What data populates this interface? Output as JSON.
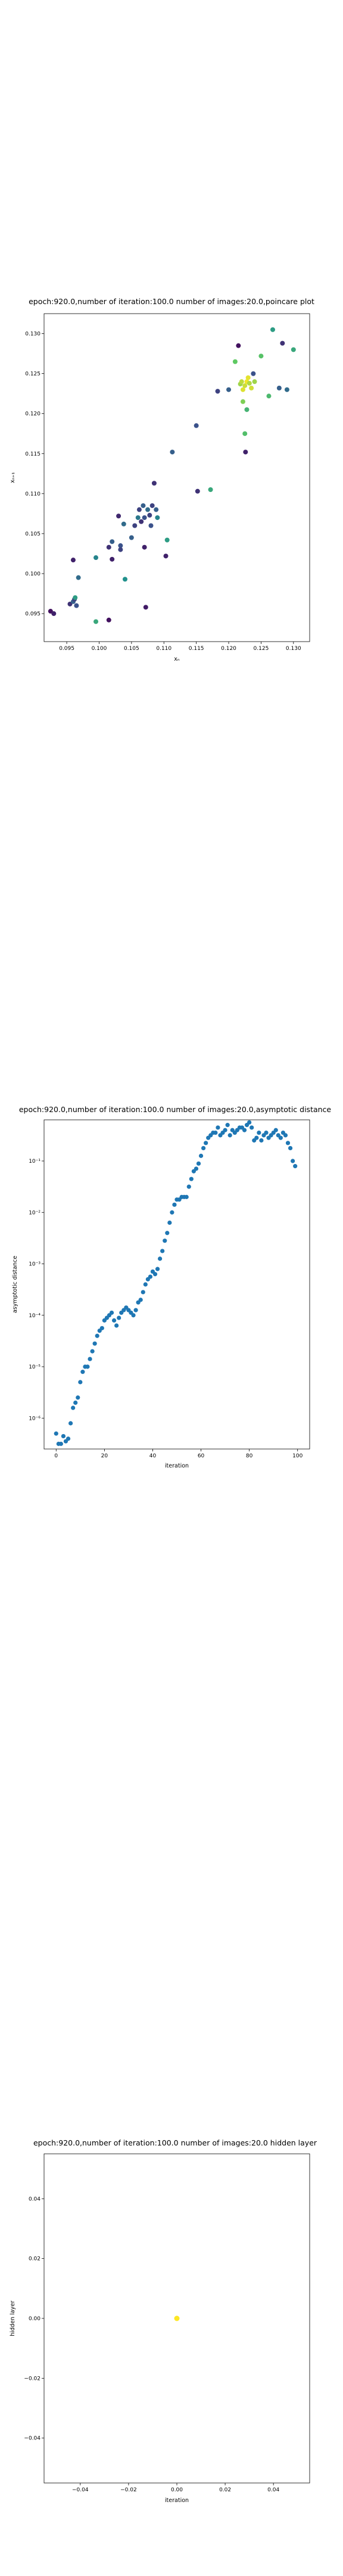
{
  "chart_data": [
    {
      "type": "scatter",
      "title": "epoch:920.0,number of iteration:100.0 number of images:20.0,poincare plot",
      "xlabel": "xₙ",
      "ylabel": "xₙ₊₁",
      "xlim": [
        0.0915,
        0.1325
      ],
      "ylim": [
        0.0915,
        0.1325
      ],
      "xticks": [
        0.095,
        0.1,
        0.105,
        0.11,
        0.115,
        0.12,
        0.125,
        0.13
      ],
      "yticks": [
        0.095,
        0.1,
        0.105,
        0.11,
        0.115,
        0.12,
        0.125,
        0.13
      ],
      "colormap": "viridis",
      "points": [
        {
          "x": 0.0925,
          "y": 0.0953,
          "c": 0.05
        },
        {
          "x": 0.093,
          "y": 0.095,
          "c": 0.1
        },
        {
          "x": 0.0955,
          "y": 0.0962,
          "c": 0.15
        },
        {
          "x": 0.096,
          "y": 0.0965,
          "c": 0.3
        },
        {
          "x": 0.0962,
          "y": 0.0968,
          "c": 0.2
        },
        {
          "x": 0.0963,
          "y": 0.097,
          "c": 0.55
        },
        {
          "x": 0.0965,
          "y": 0.096,
          "c": 0.25
        },
        {
          "x": 0.096,
          "y": 0.1017,
          "c": 0.1
        },
        {
          "x": 0.0968,
          "y": 0.0995,
          "c": 0.35
        },
        {
          "x": 0.0995,
          "y": 0.102,
          "c": 0.45
        },
        {
          "x": 0.0995,
          "y": 0.094,
          "c": 0.6
        },
        {
          "x": 0.1015,
          "y": 0.0942,
          "c": 0.05
        },
        {
          "x": 0.1015,
          "y": 0.1033,
          "c": 0.15
        },
        {
          "x": 0.102,
          "y": 0.104,
          "c": 0.3
        },
        {
          "x": 0.102,
          "y": 0.1018,
          "c": 0.1
        },
        {
          "x": 0.103,
          "y": 0.1072,
          "c": 0.12
        },
        {
          "x": 0.1033,
          "y": 0.1035,
          "c": 0.25
        },
        {
          "x": 0.1033,
          "y": 0.103,
          "c": 0.2
        },
        {
          "x": 0.1038,
          "y": 0.1062,
          "c": 0.35
        },
        {
          "x": 0.104,
          "y": 0.0993,
          "c": 0.5
        },
        {
          "x": 0.105,
          "y": 0.1045,
          "c": 0.3
        },
        {
          "x": 0.1055,
          "y": 0.106,
          "c": 0.2
        },
        {
          "x": 0.106,
          "y": 0.107,
          "c": 0.4
        },
        {
          "x": 0.1062,
          "y": 0.108,
          "c": 0.2
        },
        {
          "x": 0.1065,
          "y": 0.1065,
          "c": 0.15
        },
        {
          "x": 0.1068,
          "y": 0.1085,
          "c": 0.3
        },
        {
          "x": 0.107,
          "y": 0.107,
          "c": 0.25
        },
        {
          "x": 0.107,
          "y": 0.1033,
          "c": 0.1
        },
        {
          "x": 0.1072,
          "y": 0.0958,
          "c": 0.08
        },
        {
          "x": 0.1075,
          "y": 0.108,
          "c": 0.35
        },
        {
          "x": 0.1078,
          "y": 0.1073,
          "c": 0.2
        },
        {
          "x": 0.108,
          "y": 0.106,
          "c": 0.25
        },
        {
          "x": 0.1082,
          "y": 0.1085,
          "c": 0.2
        },
        {
          "x": 0.1085,
          "y": 0.1113,
          "c": 0.15
        },
        {
          "x": 0.1088,
          "y": 0.108,
          "c": 0.3
        },
        {
          "x": 0.109,
          "y": 0.107,
          "c": 0.45
        },
        {
          "x": 0.1103,
          "y": 0.1022,
          "c": 0.1
        },
        {
          "x": 0.1105,
          "y": 0.1042,
          "c": 0.55
        },
        {
          "x": 0.1113,
          "y": 0.1152,
          "c": 0.3
        },
        {
          "x": 0.115,
          "y": 0.1185,
          "c": 0.25
        },
        {
          "x": 0.1152,
          "y": 0.1103,
          "c": 0.15
        },
        {
          "x": 0.1172,
          "y": 0.1105,
          "c": 0.6
        },
        {
          "x": 0.1183,
          "y": 0.1228,
          "c": 0.2
        },
        {
          "x": 0.12,
          "y": 0.123,
          "c": 0.3
        },
        {
          "x": 0.121,
          "y": 0.1265,
          "c": 0.75
        },
        {
          "x": 0.1215,
          "y": 0.1285,
          "c": 0.05
        },
        {
          "x": 0.1218,
          "y": 0.1237,
          "c": 0.85
        },
        {
          "x": 0.122,
          "y": 0.124,
          "c": 0.9
        },
        {
          "x": 0.1222,
          "y": 0.123,
          "c": 0.95
        },
        {
          "x": 0.1222,
          "y": 0.1215,
          "c": 0.8
        },
        {
          "x": 0.1225,
          "y": 0.1235,
          "c": 0.92
        },
        {
          "x": 0.1225,
          "y": 0.1175,
          "c": 0.7
        },
        {
          "x": 0.1226,
          "y": 0.1152,
          "c": 0.1
        },
        {
          "x": 0.1228,
          "y": 0.1205,
          "c": 0.65
        },
        {
          "x": 0.1228,
          "y": 0.124,
          "c": 0.98
        },
        {
          "x": 0.123,
          "y": 0.1245,
          "c": 0.96
        },
        {
          "x": 0.1232,
          "y": 0.1238,
          "c": 0.88
        },
        {
          "x": 0.1235,
          "y": 0.1232,
          "c": 0.93
        },
        {
          "x": 0.1238,
          "y": 0.125,
          "c": 0.25
        },
        {
          "x": 0.124,
          "y": 0.124,
          "c": 0.85
        },
        {
          "x": 0.125,
          "y": 0.1272,
          "c": 0.72
        },
        {
          "x": 0.1262,
          "y": 0.1222,
          "c": 0.68
        },
        {
          "x": 0.1268,
          "y": 0.1305,
          "c": 0.55
        },
        {
          "x": 0.1278,
          "y": 0.1232,
          "c": 0.3
        },
        {
          "x": 0.1283,
          "y": 0.1288,
          "c": 0.15
        },
        {
          "x": 0.129,
          "y": 0.123,
          "c": 0.35
        },
        {
          "x": 0.13,
          "y": 0.128,
          "c": 0.6
        }
      ]
    },
    {
      "type": "scatter",
      "title": "epoch:920.0,number of iteration:100.0  number of images:20.0,asymptotic distance",
      "xlabel": "iteration",
      "ylabel": "asymptotic distance",
      "xscale": "linear",
      "yscale": "log",
      "xlim": [
        -5,
        105
      ],
      "ylim_log10": [
        -6.6,
        -0.2
      ],
      "xticks": [
        "0",
        "20",
        "40",
        "60",
        "80",
        "100"
      ],
      "xtick_values": [
        0,
        20,
        40,
        60,
        80,
        100
      ],
      "yticks": [
        "10⁻⁶",
        "10⁻⁵",
        "10⁻⁴",
        "10⁻³",
        "10⁻²",
        "10⁻¹"
      ],
      "ytick_log10": [
        -6,
        -5,
        -4,
        -3,
        -2,
        -1
      ],
      "color": "#1f77b4",
      "x": [
        0,
        1,
        2,
        3,
        4,
        5,
        6,
        7,
        8,
        9,
        10,
        11,
        12,
        13,
        14,
        15,
        16,
        17,
        18,
        19,
        20,
        21,
        22,
        23,
        24,
        25,
        26,
        27,
        28,
        29,
        30,
        31,
        32,
        33,
        34,
        35,
        36,
        37,
        38,
        39,
        40,
        41,
        42,
        43,
        44,
        45,
        46,
        47,
        48,
        49,
        50,
        51,
        52,
        53,
        54,
        55,
        56,
        57,
        58,
        59,
        60,
        61,
        62,
        63,
        64,
        65,
        66,
        67,
        68,
        69,
        70,
        71,
        72,
        73,
        74,
        75,
        76,
        77,
        78,
        79,
        80,
        81,
        82,
        83,
        84,
        85,
        86,
        87,
        88,
        89,
        90,
        91,
        92,
        93,
        94,
        95,
        96,
        97,
        98,
        99
      ],
      "y_log10": [
        -6.3,
        -6.5,
        -6.5,
        -6.35,
        -6.45,
        -6.4,
        -6.1,
        -5.8,
        -5.7,
        -5.6,
        -5.3,
        -5.1,
        -5.0,
        -5.0,
        -4.85,
        -4.7,
        -4.55,
        -4.4,
        -4.3,
        -4.25,
        -4.1,
        -4.05,
        -4.0,
        -3.95,
        -4.1,
        -4.2,
        -4.05,
        -3.95,
        -3.9,
        -3.85,
        -3.9,
        -3.95,
        -4.0,
        -3.9,
        -3.75,
        -3.7,
        -3.55,
        -3.4,
        -3.3,
        -3.25,
        -3.15,
        -3.2,
        -3.1,
        -2.9,
        -2.75,
        -2.55,
        -2.4,
        -2.2,
        -2.0,
        -1.85,
        -1.75,
        -1.75,
        -1.7,
        -1.7,
        -1.7,
        -1.5,
        -1.35,
        -1.2,
        -1.15,
        -1.05,
        -0.9,
        -0.75,
        -0.65,
        -0.55,
        -0.5,
        -0.45,
        -0.45,
        -0.35,
        -0.5,
        -0.45,
        -0.4,
        -0.3,
        -0.5,
        -0.4,
        -0.45,
        -0.4,
        -0.35,
        -0.35,
        -0.4,
        -0.3,
        -0.25,
        -0.35,
        -0.6,
        -0.55,
        -0.45,
        -0.6,
        -0.5,
        -0.45,
        -0.55,
        -0.5,
        -0.45,
        -0.4,
        -0.5,
        -0.55,
        -0.45,
        -0.5,
        -0.65,
        -0.75,
        -1.0,
        -1.1
      ],
      "y_log10_overlay": [
        -6.3,
        -6.5,
        -6.5,
        -6.35,
        -6.45,
        -6.4,
        -6.1,
        -5.8,
        -5.7,
        -5.6,
        -5.3,
        -5.1,
        -5.0,
        -5.0,
        -4.85,
        -4.7,
        -4.55,
        -4.4,
        -4.3,
        -4.25,
        -4.1,
        -4.05,
        -4.0,
        -3.95,
        -4.1,
        -4.2,
        -4.05,
        -3.95,
        -3.9,
        -3.85,
        -3.9,
        -3.95,
        -4.0,
        -3.9,
        -3.75,
        -3.7,
        -3.55,
        -3.4,
        -3.3,
        -3.25,
        -3.15,
        -3.2,
        -3.1,
        -2.9,
        -2.75,
        -2.55,
        -2.4,
        -2.2,
        -2.0,
        -1.85,
        -1.75,
        -1.75,
        -1.7,
        -1.7,
        -1.7,
        -1.5,
        -1.35,
        -1.2,
        -1.15,
        -1.05,
        -0.9,
        -0.75,
        -0.65,
        -0.55,
        -0.5,
        -0.45,
        -0.45,
        -0.35,
        -0.5,
        -0.45,
        -0.4,
        -0.3,
        -0.5,
        -0.4,
        -0.45,
        -0.4,
        -0.35,
        -0.35,
        -0.4,
        -0.3,
        -0.25,
        -0.35,
        -0.6,
        -0.55,
        -0.45,
        -0.6,
        -0.5,
        -0.45,
        -0.55,
        -0.5,
        -0.45,
        -0.4,
        -0.5,
        -0.55,
        -0.45,
        -0.5,
        -0.65,
        -0.75,
        -1.0,
        -1.1
      ]
    },
    {
      "type": "scatter",
      "title": "epoch:920.0,number of iteration:100.0  number of images:20.0 hidden layer",
      "xlabel": "iteration",
      "ylabel": "hidden layer",
      "xlim": [
        -0.055,
        0.055
      ],
      "ylim": [
        -0.055,
        0.055
      ],
      "xticks": [
        -0.04,
        -0.02,
        0.0,
        0.02,
        0.04
      ],
      "xtick_labels": [
        "−0.04",
        "−0.02",
        "0.00",
        "0.02",
        "0.04"
      ],
      "yticks": [
        -0.04,
        -0.02,
        0.0,
        0.02,
        0.04
      ],
      "ytick_labels": [
        "−0.04",
        "−0.02",
        "0.00",
        "0.02",
        "0.04"
      ],
      "color": "#fde725",
      "points": [
        {
          "x": 0.0,
          "y": 0.0
        }
      ]
    }
  ]
}
